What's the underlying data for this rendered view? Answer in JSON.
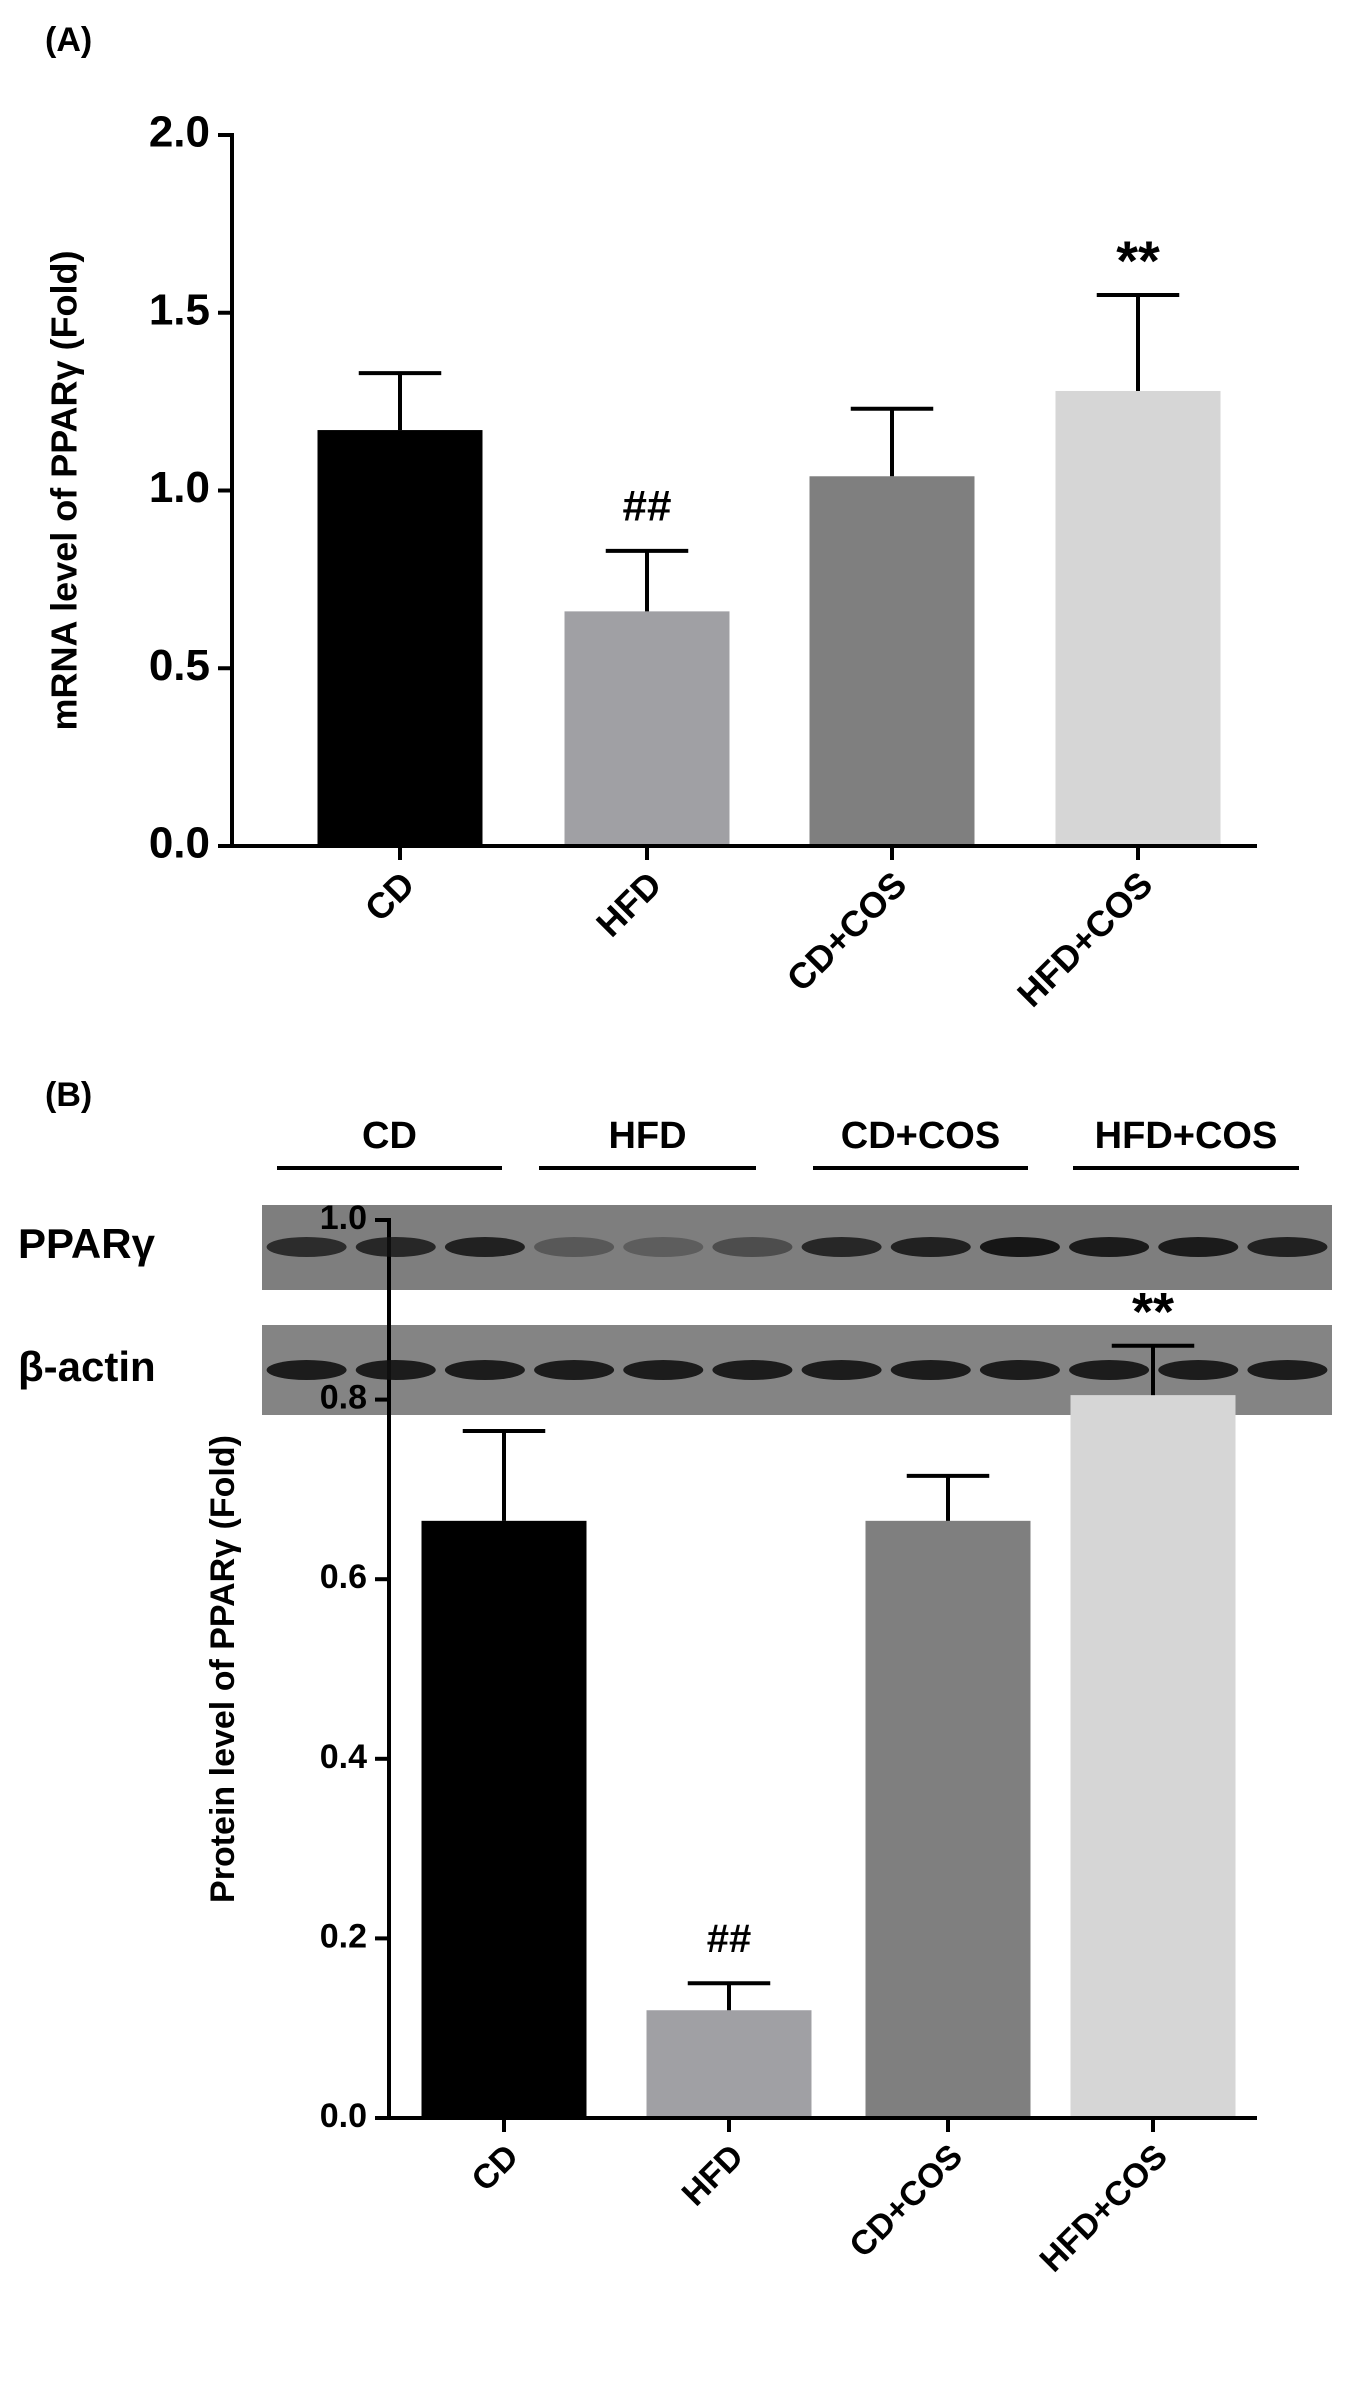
{
  "chart_data": [
    {
      "type": "bar",
      "panel_label": "(A)",
      "ylabel": "mRNA level of PPARγ (Fold)",
      "categories": [
        "CD",
        "HFD",
        "CD+COS",
        "HFD+COS"
      ],
      "values": [
        1.17,
        0.66,
        1.04,
        1.28
      ],
      "errors": [
        0.16,
        0.17,
        0.19,
        0.27
      ],
      "annotations": [
        null,
        "##",
        null,
        "**"
      ],
      "colors": [
        "#000000",
        "#a0a0a4",
        "#7f7f7f",
        "#d6d6d6"
      ],
      "ylim": [
        0,
        2
      ],
      "yticks": [
        {
          "value": 0,
          "label": "0.0"
        },
        0.5,
        {
          "value": 1,
          "label": "1.0"
        },
        1.5,
        {
          "value": 2,
          "label": "2.0"
        }
      ]
    },
    {
      "type": "bar",
      "panel_label": "(B)",
      "ylabel": "Protein level of PPARγ (Fold)",
      "categories": [
        "CD",
        "HFD",
        "CD+COS",
        "HFD+COS"
      ],
      "values": [
        0.665,
        0.12,
        0.665,
        0.805
      ],
      "errors": [
        0.1,
        0.03,
        0.05,
        0.055
      ],
      "annotations": [
        null,
        "##",
        null,
        "**"
      ],
      "colors": [
        "#000000",
        "#a0a0a4",
        "#7f7f7f",
        "#d6d6d6"
      ],
      "ylim": [
        0,
        1
      ],
      "yticks": [
        {
          "value": 0,
          "label": "0.0"
        },
        0.2,
        0.4,
        0.6,
        0.8,
        {
          "value": 1,
          "label": "1.0"
        }
      ]
    }
  ],
  "blot": {
    "groups": [
      "CD",
      "HFD",
      "CD+COS",
      "HFD+COS"
    ],
    "rows": [
      "PPARγ",
      "β-actin"
    ]
  }
}
